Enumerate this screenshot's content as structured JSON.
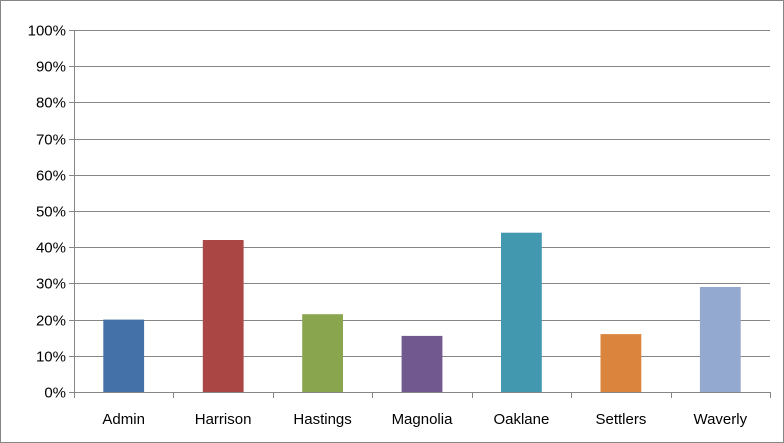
{
  "chart_data": {
    "type": "bar",
    "categories": [
      "Admin",
      "Harrison",
      "Hastings",
      "Magnolia",
      "Oaklane",
      "Settlers",
      "Waverly"
    ],
    "values": [
      20,
      42,
      21.5,
      15.5,
      44,
      16,
      29
    ],
    "value_unit": "%",
    "ylim": [
      0,
      100
    ],
    "yticks": [
      "0%",
      "10%",
      "20%",
      "30%",
      "40%",
      "50%",
      "60%",
      "70%",
      "80%",
      "90%",
      "100%"
    ],
    "title": "",
    "xlabel": "",
    "ylabel": "",
    "grid": true,
    "legend": "none",
    "colors": [
      "#4472a8",
      "#aa4643",
      "#89a54e",
      "#71588f",
      "#4198af",
      "#db843d",
      "#93a9cf"
    ],
    "gridline_color": "#868686",
    "border_color": "#868686"
  }
}
